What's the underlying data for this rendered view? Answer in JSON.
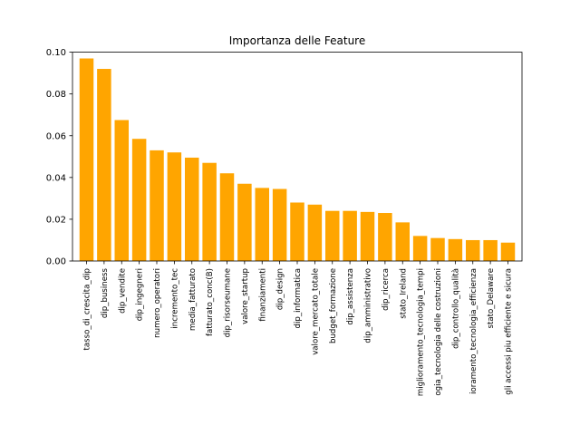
{
  "chart_data": {
    "type": "bar",
    "title": "Importanza delle Feature",
    "xlabel": "",
    "ylabel": "",
    "ylim": [
      0,
      0.1
    ],
    "yticks": [
      "0.00",
      "0.02",
      "0.04",
      "0.06",
      "0.08",
      "0.10"
    ],
    "bar_color": "#FFA500",
    "categories": [
      "tasso_di_crescita_dip",
      "dip_business",
      "dip_vendite",
      "dip_ingegneri",
      "numero_operatori",
      "incremento_tec",
      "media_fatturato",
      "fatturato_conc(B)",
      "dip_risorseumane",
      "valore_startup",
      "finanziamenti",
      "dip_design",
      "dip_informatica",
      "valore_mercato_totale",
      "budget_formazione",
      "dip_assistenza",
      "dip_amministrativo",
      "dip_ricerca",
      "stato_Ireland",
      "miglioramento_tecnologia_tempi",
      "ogia_tecnologia delle costruzioni",
      "dip_controllo_qualità",
      "ioramento_tecnologia_efficienza",
      "stato_Delaware",
      "gli accessi piu efficiente e sicura"
    ],
    "values": [
      0.097,
      0.092,
      0.0675,
      0.0585,
      0.053,
      0.052,
      0.0495,
      0.047,
      0.042,
      0.037,
      0.035,
      0.0345,
      0.028,
      0.027,
      0.024,
      0.024,
      0.0235,
      0.023,
      0.0185,
      0.012,
      0.011,
      0.0105,
      0.01,
      0.01,
      0.0088
    ]
  }
}
